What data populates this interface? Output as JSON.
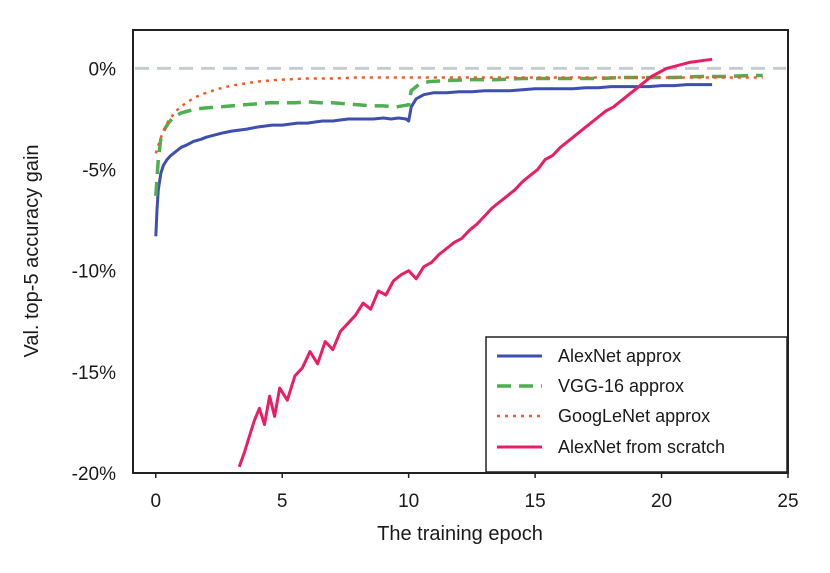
{
  "chart_data": {
    "type": "line",
    "title": "",
    "xlabel": "The training epoch",
    "ylabel": "Val. top-5 accuracy gain",
    "xlim": [
      -0.9,
      25
    ],
    "ylim": [
      -20,
      1.9
    ],
    "xticks": [
      0,
      5,
      10,
      15,
      20,
      25
    ],
    "xtick_labels": [
      "0",
      "5",
      "10",
      "15",
      "20",
      "25"
    ],
    "yticks": [
      0,
      -5,
      -10,
      -15,
      -20
    ],
    "ytick_labels": [
      "0%",
      "-5%",
      "-10%",
      "-15%",
      "-20%"
    ],
    "grid": false,
    "legend_position": "lower-right",
    "reference_line": {
      "y": 0,
      "style": "dashed",
      "color": "#c5cdd3"
    },
    "series": [
      {
        "name": "AlexNet approx",
        "style": "solid",
        "color": "#3d4fb0",
        "x": [
          0,
          0.05,
          0.1,
          0.2,
          0.3,
          0.45,
          0.6,
          0.8,
          1.0,
          1.2,
          1.5,
          1.8,
          2.0,
          2.3,
          2.6,
          3.0,
          3.3,
          3.6,
          4.0,
          4.3,
          4.6,
          5.0,
          5.3,
          5.6,
          6.0,
          6.3,
          6.6,
          7.0,
          7.3,
          7.6,
          8.0,
          8.3,
          8.6,
          9.0,
          9.3,
          9.6,
          9.9,
          10.0,
          10.1,
          10.3,
          10.6,
          11.0,
          11.5,
          12.0,
          12.5,
          13.0,
          13.5,
          14.0,
          14.5,
          15.0,
          15.5,
          16.0,
          16.5,
          17.0,
          17.5,
          18.0,
          18.5,
          19.0,
          19.5,
          20.0,
          20.5,
          21.0,
          21.5,
          22.0
        ],
        "values": [
          -8.3,
          -7.0,
          -6.0,
          -5.2,
          -4.8,
          -4.5,
          -4.3,
          -4.1,
          -3.9,
          -3.8,
          -3.6,
          -3.5,
          -3.4,
          -3.3,
          -3.2,
          -3.1,
          -3.05,
          -3.0,
          -2.9,
          -2.85,
          -2.8,
          -2.8,
          -2.75,
          -2.7,
          -2.7,
          -2.65,
          -2.6,
          -2.6,
          -2.55,
          -2.5,
          -2.5,
          -2.5,
          -2.5,
          -2.45,
          -2.5,
          -2.45,
          -2.5,
          -2.6,
          -1.9,
          -1.5,
          -1.3,
          -1.2,
          -1.2,
          -1.15,
          -1.15,
          -1.1,
          -1.1,
          -1.1,
          -1.05,
          -1.0,
          -1.0,
          -1.0,
          -1.0,
          -0.95,
          -0.95,
          -0.9,
          -0.9,
          -0.9,
          -0.9,
          -0.85,
          -0.85,
          -0.8,
          -0.8,
          -0.8
        ]
      },
      {
        "name": "VGG-16 approx",
        "style": "dashed",
        "color": "#4caf50",
        "x": [
          0,
          0.1,
          0.2,
          0.35,
          0.5,
          0.7,
          1.0,
          1.3,
          1.6,
          2.0,
          2.5,
          3.0,
          3.5,
          4.0,
          4.5,
          5.0,
          5.5,
          6.0,
          6.5,
          7.0,
          7.5,
          8.0,
          8.5,
          9.0,
          9.5,
          10.0,
          10.1,
          10.4,
          10.8,
          11.5,
          12.5,
          13.5,
          14.5,
          15.5,
          16.5,
          17.5,
          18.5,
          19.5,
          20.5,
          21.5,
          22.5,
          23.5,
          24.0
        ],
        "values": [
          -6.3,
          -4.5,
          -3.5,
          -3.0,
          -2.7,
          -2.4,
          -2.2,
          -2.1,
          -2.0,
          -1.95,
          -1.9,
          -1.85,
          -1.8,
          -1.75,
          -1.7,
          -1.7,
          -1.7,
          -1.65,
          -1.7,
          -1.7,
          -1.75,
          -1.8,
          -1.85,
          -1.85,
          -1.9,
          -1.8,
          -1.1,
          -0.8,
          -0.65,
          -0.6,
          -0.55,
          -0.55,
          -0.5,
          -0.5,
          -0.5,
          -0.5,
          -0.45,
          -0.45,
          -0.45,
          -0.4,
          -0.4,
          -0.35,
          -0.35
        ]
      },
      {
        "name": "GoogLeNet approx",
        "style": "dotted",
        "color": "#f05a28",
        "x": [
          0,
          0.15,
          0.3,
          0.5,
          0.8,
          1.2,
          1.6,
          2.0,
          2.5,
          3.0,
          3.5,
          4.0,
          5.0,
          6.0,
          7.0,
          8.0,
          9.0,
          10.0,
          11.0,
          12.0,
          13.0,
          14.0,
          15.0,
          16.0,
          17.0,
          18.0,
          19.0,
          20.0,
          21.0,
          22.0,
          23.0,
          24.0
        ],
        "values": [
          -4.2,
          -3.6,
          -3.1,
          -2.6,
          -2.1,
          -1.7,
          -1.4,
          -1.2,
          -1.0,
          -0.85,
          -0.75,
          -0.65,
          -0.55,
          -0.5,
          -0.5,
          -0.45,
          -0.45,
          -0.45,
          -0.45,
          -0.45,
          -0.45,
          -0.45,
          -0.45,
          -0.45,
          -0.45,
          -0.45,
          -0.45,
          -0.45,
          -0.45,
          -0.45,
          -0.45,
          -0.45
        ]
      },
      {
        "name": "AlexNet from scratch",
        "style": "solid",
        "color": "#e91e63",
        "x": [
          3.3,
          3.5,
          3.7,
          3.9,
          4.1,
          4.3,
          4.5,
          4.7,
          4.9,
          5.2,
          5.5,
          5.8,
          6.1,
          6.4,
          6.7,
          7.0,
          7.3,
          7.6,
          7.9,
          8.2,
          8.5,
          8.8,
          9.1,
          9.4,
          9.7,
          10.0,
          10.3,
          10.6,
          10.9,
          11.2,
          11.5,
          11.8,
          12.1,
          12.4,
          12.7,
          13.0,
          13.3,
          13.6,
          13.9,
          14.2,
          14.5,
          14.8,
          15.1,
          15.4,
          15.7,
          16.0,
          16.3,
          16.6,
          16.9,
          17.2,
          17.5,
          17.8,
          18.1,
          18.4,
          18.7,
          19.0,
          19.3,
          19.6,
          19.9,
          20.2,
          20.5,
          20.8,
          21.1,
          21.4,
          21.7,
          22.0
        ],
        "values": [
          -19.7,
          -19.0,
          -18.2,
          -17.4,
          -16.8,
          -17.6,
          -16.2,
          -17.2,
          -15.8,
          -16.4,
          -15.2,
          -14.8,
          -14.0,
          -14.6,
          -13.5,
          -13.9,
          -13.0,
          -12.6,
          -12.2,
          -11.6,
          -11.9,
          -11.0,
          -11.2,
          -10.5,
          -10.2,
          -10.0,
          -10.4,
          -9.8,
          -9.6,
          -9.2,
          -8.9,
          -8.6,
          -8.4,
          -8.0,
          -7.7,
          -7.3,
          -6.9,
          -6.6,
          -6.3,
          -6.0,
          -5.6,
          -5.3,
          -5.0,
          -4.5,
          -4.3,
          -3.9,
          -3.6,
          -3.3,
          -3.0,
          -2.7,
          -2.4,
          -2.1,
          -1.9,
          -1.6,
          -1.3,
          -1.0,
          -0.7,
          -0.4,
          -0.2,
          0.0,
          0.1,
          0.2,
          0.3,
          0.35,
          0.4,
          0.45
        ]
      }
    ]
  }
}
